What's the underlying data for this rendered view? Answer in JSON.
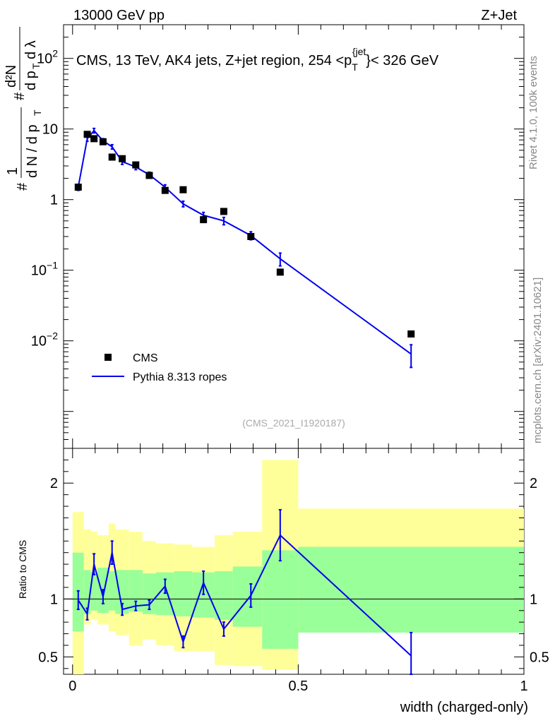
{
  "header": {
    "energy_label": "13000 GeV pp",
    "process_label": "Z+Jet"
  },
  "side_labels": {
    "rivet": "Rivet 4.1.0,  100k events",
    "mcplots": "mcplots.cern.ch [arXiv:2401.10621]"
  },
  "chart_data": [
    {
      "type": "scatter",
      "panel": "main",
      "title": "CMS, 13 TeV, AK4 jets, Z+jet region, 254 <p_T^{jet}< 326 GeV",
      "ylabel": "1/(dN/dp_T) · d²N/(dp_T dλ)",
      "yscale": "log",
      "ylim": [
        0.0003,
        300
      ],
      "xlim": [
        -0.02,
        1.0
      ],
      "watermark": "(CMS_2021_I1920187)",
      "y_tick_labels": [
        "10^-2",
        "10^-1",
        "1",
        "10",
        "10^2"
      ],
      "y_tick_values": [
        0.01,
        0.1,
        1,
        10,
        100
      ],
      "legend": [
        "CMS",
        "Pythia 8.313 ropes"
      ],
      "legend_position": "bottom-left",
      "series": [
        {
          "name": "CMS",
          "style": "markers",
          "x": [
            0.0125,
            0.0325,
            0.0475,
            0.0675,
            0.0875,
            0.11,
            0.14,
            0.17,
            0.205,
            0.245,
            0.29,
            0.335,
            0.395,
            0.46,
            0.75
          ],
          "y": [
            1.5,
            8.4,
            7.3,
            6.6,
            4.0,
            3.8,
            3.1,
            2.2,
            1.35,
            1.38,
            0.52,
            0.68,
            0.3,
            0.094,
            0.0125
          ]
        },
        {
          "name": "Pythia 8.313 ropes",
          "style": "line",
          "x": [
            0.0125,
            0.0325,
            0.0475,
            0.0675,
            0.0875,
            0.11,
            0.14,
            0.17,
            0.205,
            0.245,
            0.29,
            0.335,
            0.395,
            0.46,
            0.75
          ],
          "y": [
            1.5,
            7.3,
            9.5,
            6.8,
            5.6,
            3.45,
            2.9,
            2.25,
            1.5,
            0.87,
            0.6,
            0.5,
            0.31,
            0.145,
            0.0065
          ],
          "err": [
            0.15,
            0.6,
            0.7,
            0.5,
            0.4,
            0.3,
            0.25,
            0.2,
            0.12,
            0.08,
            0.06,
            0.06,
            0.04,
            0.03,
            0.0023
          ]
        }
      ]
    },
    {
      "type": "line",
      "panel": "ratio",
      "ylabel": "Ratio to CMS",
      "xlabel": "width (charged-only)",
      "ylim": [
        0.35,
        2.3
      ],
      "xlim": [
        -0.02,
        1.0
      ],
      "x_tick_labels": [
        "0",
        "0.5",
        "1"
      ],
      "x_tick_values": [
        0,
        0.5,
        1
      ],
      "y_tick_labels": [
        "0.5",
        "1",
        "2"
      ],
      "y_tick_values": [
        0.5,
        1,
        2
      ],
      "bands": {
        "edges": [
          0.0,
          0.025,
          0.04,
          0.055,
          0.08,
          0.095,
          0.125,
          0.155,
          0.185,
          0.225,
          0.265,
          0.315,
          0.355,
          0.42,
          0.5,
          1.0
        ],
        "inner_low": [
          0.72,
          0.87,
          0.9,
          0.88,
          0.9,
          0.87,
          0.89,
          0.87,
          0.86,
          0.85,
          0.84,
          0.82,
          0.76,
          0.57,
          0.71
        ],
        "inner_high": [
          1.4,
          1.25,
          1.23,
          1.27,
          1.24,
          1.25,
          1.25,
          1.22,
          1.23,
          1.24,
          1.23,
          1.24,
          1.28,
          1.42,
          1.45
        ],
        "outer_low": [
          0.3,
          0.78,
          0.82,
          0.78,
          0.72,
          0.69,
          0.6,
          0.65,
          0.6,
          0.55,
          0.55,
          0.43,
          0.42,
          0.39,
          0.72
        ],
        "outer_high": [
          1.75,
          1.6,
          1.58,
          1.55,
          1.65,
          1.6,
          1.58,
          1.5,
          1.48,
          1.47,
          1.45,
          1.55,
          1.58,
          2.2,
          1.78
        ]
      },
      "series": [
        {
          "name": "Pythia 8.313 ropes / CMS",
          "x": [
            0.0125,
            0.0325,
            0.0475,
            0.0675,
            0.0875,
            0.11,
            0.14,
            0.17,
            0.205,
            0.245,
            0.29,
            0.335,
            0.395,
            0.46,
            0.75
          ],
          "y": [
            0.99,
            0.87,
            1.3,
            1.02,
            1.4,
            0.91,
            0.94,
            0.95,
            1.11,
            0.63,
            1.14,
            0.74,
            1.03,
            1.55,
            0.51
          ],
          "err": [
            0.08,
            0.05,
            0.09,
            0.06,
            0.1,
            0.05,
            0.04,
            0.04,
            0.06,
            0.05,
            0.1,
            0.06,
            0.1,
            0.22,
            0.2
          ]
        }
      ]
    }
  ]
}
